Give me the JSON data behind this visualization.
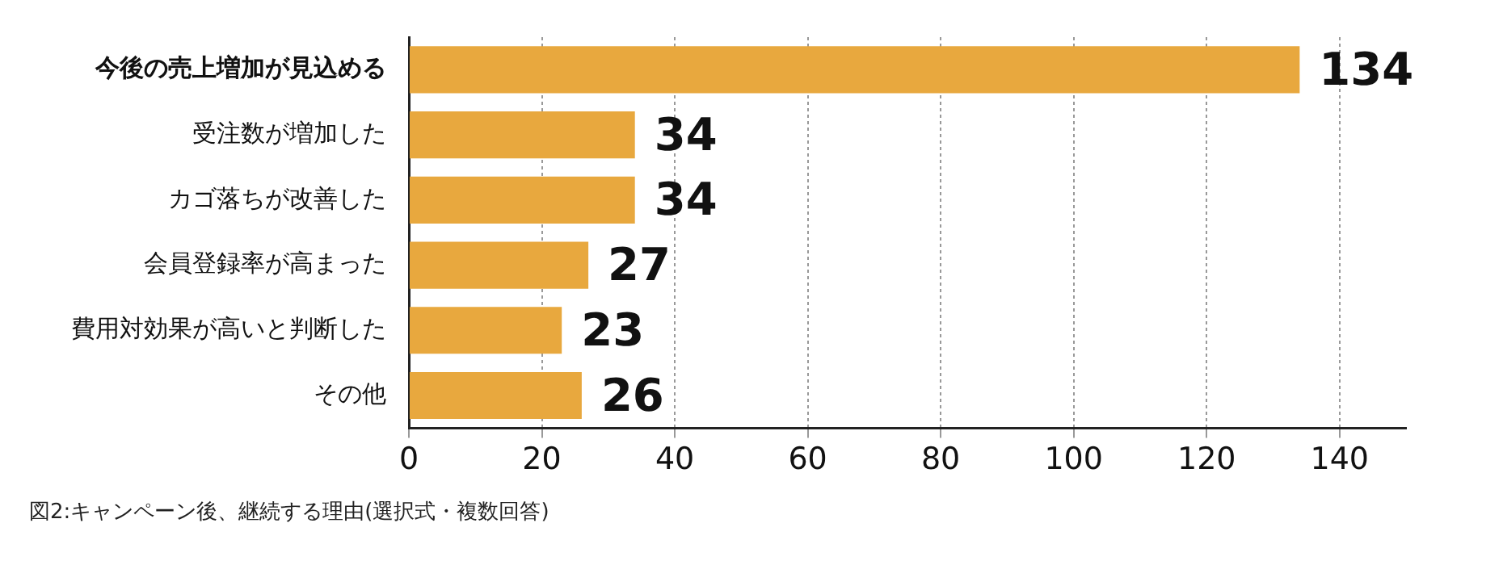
{
  "chart_data": {
    "type": "bar",
    "orientation": "horizontal",
    "categories": [
      "今後の売上増加が見込める",
      "受注数が増加した",
      "カゴ落ちが改善した",
      "会員登録率が高まった",
      "費用対効果が高いと判断した",
      "その他"
    ],
    "values": [
      134,
      34,
      34,
      27,
      23,
      26
    ],
    "color": "#e8a83e",
    "xlim": [
      0,
      150
    ],
    "xticks": [
      0,
      20,
      40,
      60,
      80,
      100,
      120,
      140
    ],
    "grid": "x",
    "data_labels": true,
    "annotations": [
      "図2:キャンペーン後、継続する理由(選択式・複数回答)"
    ]
  }
}
